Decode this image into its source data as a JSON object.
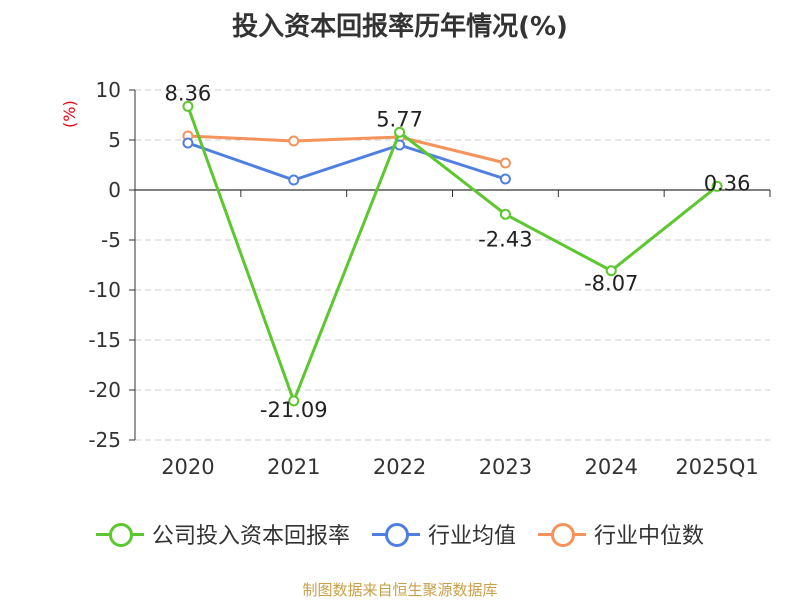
{
  "title": "投入资本回报率历年情况(%)",
  "unit_label": "(%)",
  "source": "制图数据来自恒生聚源数据库",
  "colors": {
    "company": "#5cc72e",
    "average": "#4f7fe0",
    "median": "#f4935c",
    "grid": "#cccccc",
    "axis": "#333333"
  },
  "chart_data": {
    "type": "line",
    "categories": [
      "2020",
      "2021",
      "2022",
      "2023",
      "2024",
      "2025Q1"
    ],
    "ylim": [
      -25,
      10
    ],
    "yticks": [
      10,
      5,
      0,
      -5,
      -10,
      -15,
      -20,
      -25
    ],
    "grid": true,
    "legend_position": "bottom",
    "series": [
      {
        "name": "公司投入资本回报率",
        "key": "company",
        "values": [
          8.36,
          -21.09,
          5.77,
          -2.43,
          -8.07,
          0.36
        ],
        "labels": [
          "8.36",
          "-21.09",
          "5.77",
          "-2.43",
          "-8.07",
          "0.36"
        ]
      },
      {
        "name": "行业均值",
        "key": "average",
        "values": [
          4.7,
          1.0,
          4.5,
          1.1,
          null,
          null
        ]
      },
      {
        "name": "行业中位数",
        "key": "median",
        "values": [
          5.4,
          4.9,
          5.3,
          2.7,
          null,
          null
        ]
      }
    ]
  }
}
